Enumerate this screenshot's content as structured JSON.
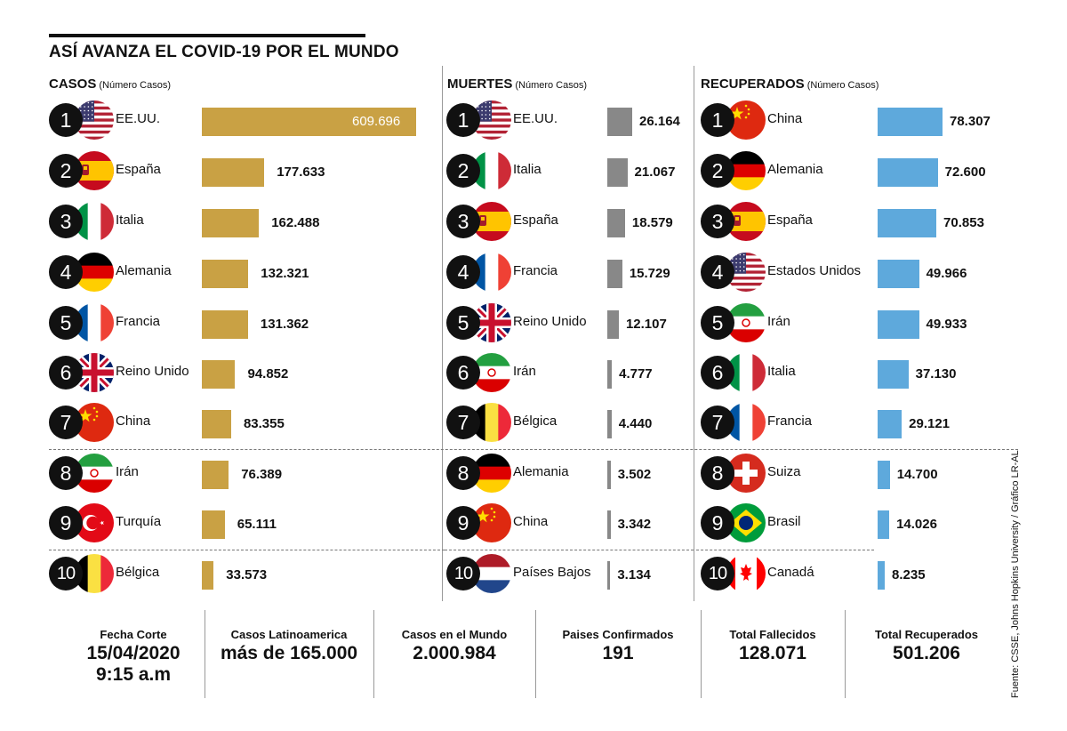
{
  "title": "ASÍ AVANZA EL COVID-19 POR EL MUNDO",
  "chart_data": [
    {
      "type": "bar",
      "title": "CASOS",
      "subtitle": "(Número Casos)",
      "color": "#c9a144",
      "ranks": [
        "1",
        "2",
        "3",
        "4",
        "5",
        "6",
        "7",
        "8",
        "9",
        "10"
      ],
      "categories": [
        "EE.UU.",
        "España",
        "Italia",
        "Alemania",
        "Francia",
        "Reino Unido",
        "China",
        "Irán",
        "Turquía",
        "Bélgica"
      ],
      "flags": [
        "usa-flag-icon",
        "spain-flag-icon",
        "italy-flag-icon",
        "germany-flag-icon",
        "france-flag-icon",
        "uk-flag-icon",
        "china-flag-icon",
        "iran-flag-icon",
        "turkey-flag-icon",
        "belgium-flag-icon"
      ],
      "values": [
        609696,
        177633,
        162488,
        132321,
        131362,
        94852,
        83355,
        76389,
        65111,
        33573
      ],
      "labels": [
        "609.696",
        "177.633",
        "162.488",
        "132.321",
        "131.362",
        "94.852",
        "83.355",
        "76.389",
        "65.111",
        "33.573"
      ]
    },
    {
      "type": "bar",
      "title": "MUERTES",
      "subtitle": "(Número Casos)",
      "color": "#888888",
      "ranks": [
        "1",
        "2",
        "3",
        "4",
        "5",
        "6",
        "7",
        "8",
        "9",
        "10"
      ],
      "categories": [
        "EE.UU.",
        "Italia",
        "España",
        "Francia",
        "Reino Unido",
        "Irán",
        "Bélgica",
        "Alemania",
        "China",
        "Países Bajos"
      ],
      "flags": [
        "usa-flag-icon",
        "italy-flag-icon",
        "spain-flag-icon",
        "france-flag-icon",
        "uk-flag-icon",
        "iran-flag-icon",
        "belgium-flag-icon",
        "germany-flag-icon",
        "china-flag-icon",
        "netherlands-flag-icon"
      ],
      "values": [
        26164,
        21067,
        18579,
        15729,
        12107,
        4777,
        4440,
        3502,
        3342,
        3134
      ],
      "labels": [
        "26.164",
        "21.067",
        "18.579",
        "15.729",
        "12.107",
        "4.777",
        "4.440",
        "3.502",
        "3.342",
        "3.134"
      ]
    },
    {
      "type": "bar",
      "title": "RECUPERADOS",
      "subtitle": "(Número Casos)",
      "color": "#5ea9dc",
      "ranks": [
        "1",
        "2",
        "3",
        "4",
        "5",
        "6",
        "7",
        "8",
        "9",
        "10"
      ],
      "categories": [
        "China",
        "Alemania",
        "España",
        "Estados Unidos",
        "Irán",
        "Italia",
        "Francia",
        "Suiza",
        "Brasil",
        "Canadá"
      ],
      "flags": [
        "china-flag-icon",
        "germany-flag-icon",
        "spain-flag-icon",
        "usa-flag-icon",
        "iran-flag-icon",
        "italy-flag-icon",
        "france-flag-icon",
        "switzerland-flag-icon",
        "brazil-flag-icon",
        "canada-flag-icon"
      ],
      "values": [
        78307,
        72600,
        70853,
        49966,
        49933,
        37130,
        29121,
        14700,
        14026,
        8235
      ],
      "labels": [
        "78.307",
        "72.600",
        "70.853",
        "49.966",
        "49.933",
        "37.130",
        "29.121",
        "14.700",
        "14.026",
        "8.235"
      ]
    }
  ],
  "stats": {
    "fecha_label": "Fecha Corte",
    "fecha_date": "15/04/2020",
    "fecha_time": "9:15 a.m",
    "latam_label": "Casos Latinoamerica",
    "latam_value": "más de 165.000",
    "mundo_label": "Casos en el Mundo",
    "mundo_value": "2.000.984",
    "paises_label": "Paises Confirmados",
    "paises_value": "191",
    "fallecidos_label": "Total Fallecidos",
    "fallecidos_value": "128.071",
    "recuperados_label": "Total Recuperados",
    "recuperados_value": "501.206"
  },
  "source": "Fuente: CSSE, Johns Hopkins University / Gráfico LR-AL"
}
